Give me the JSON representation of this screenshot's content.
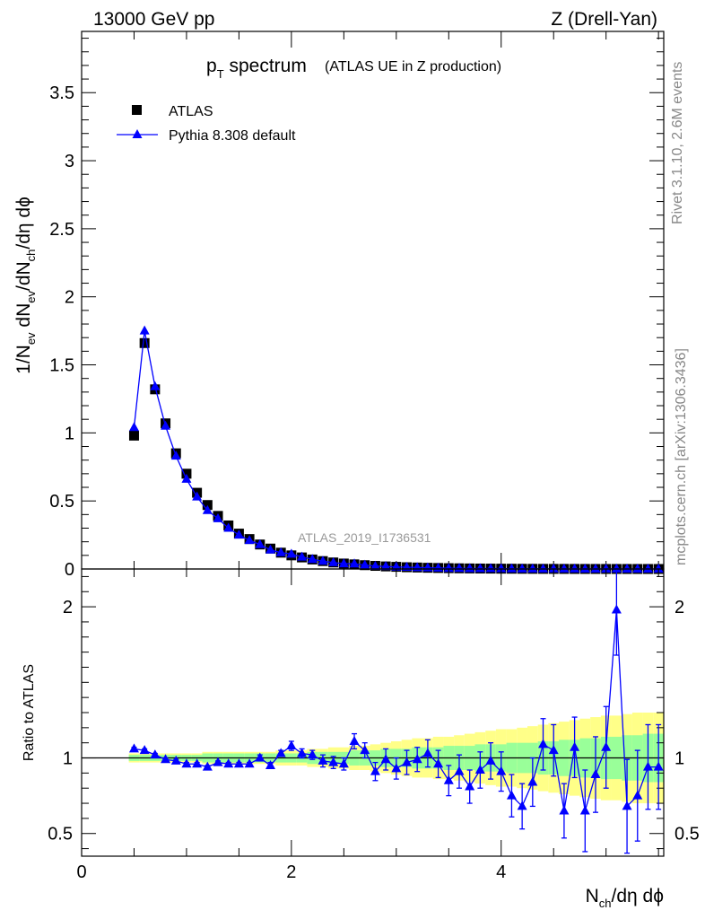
{
  "header": {
    "energy": "13000 GeV pp",
    "process": "Z (Drell-Yan)"
  },
  "title": {
    "main": "p",
    "main_sub": "T",
    "main_rest": " spectrum",
    "annotation": "(ATLAS UE in Z production)"
  },
  "side_labels": {
    "rivet": "Rivet 3.1.10,  2.6M events",
    "mcplots": "mcplots.cern.ch [arXiv:1306.3436]"
  },
  "watermark": "ATLAS_2019_I1736531",
  "legend": [
    {
      "name": "ATLAS",
      "marker": "square",
      "color": "#000000"
    },
    {
      "name": "Pythia 8.308 default",
      "marker": "triangle",
      "color": "#0000ff"
    }
  ],
  "axes": {
    "ylabel_top": {
      "p1": "1/N",
      "s1": "ev",
      "p2": " dN",
      "s2": "ev",
      "p3": "/dN",
      "s3": "ch",
      "p4": "/dη dϕ"
    },
    "ylabel_bottom": "Ratio to ATLAS",
    "xlabel": {
      "p1": "N",
      "s1": "ch",
      "p2": "/dη dϕ"
    }
  },
  "colors": {
    "data": "#000000",
    "mc": "#0000ff",
    "band_inner": "#99ff99",
    "band_outer": "#ffff88"
  },
  "chart_data": [
    {
      "type": "scatter",
      "panel": "main",
      "xlim": [
        0,
        5.55
      ],
      "ylim": [
        0,
        3.95
      ],
      "xticks": [
        0,
        2,
        4
      ],
      "yticks": [
        0,
        0.5,
        1,
        1.5,
        2,
        2.5,
        3,
        3.5
      ],
      "ytick_labels": [
        "0",
        "0.5",
        "1",
        "1.5",
        "2",
        "2.5",
        "3",
        "3.5"
      ],
      "x": [
        0.5,
        0.6,
        0.7,
        0.8,
        0.9,
        1.0,
        1.1,
        1.2,
        1.3,
        1.4,
        1.5,
        1.6,
        1.7,
        1.8,
        1.9,
        2.0,
        2.1,
        2.2,
        2.3,
        2.4,
        2.5,
        2.6,
        2.7,
        2.8,
        2.9,
        3.0,
        3.1,
        3.2,
        3.3,
        3.4,
        3.5,
        3.6,
        3.7,
        3.8,
        3.9,
        4.0,
        4.1,
        4.2,
        4.3,
        4.4,
        4.5,
        4.6,
        4.7,
        4.8,
        4.9,
        5.0,
        5.1,
        5.2,
        5.3,
        5.4,
        5.5
      ],
      "series": [
        {
          "name": "ATLAS",
          "values": [
            0.98,
            1.66,
            1.32,
            1.07,
            0.85,
            0.7,
            0.56,
            0.47,
            0.39,
            0.32,
            0.26,
            0.22,
            0.18,
            0.15,
            0.12,
            0.1,
            0.085,
            0.07,
            0.058,
            0.048,
            0.04,
            0.034,
            0.028,
            0.023,
            0.019,
            0.016,
            0.013,
            0.011,
            0.009,
            0.0075,
            0.0062,
            0.0051,
            0.0042,
            0.0035,
            0.0029,
            0.0024,
            0.002,
            0.0016,
            0.0013,
            0.0011,
            0.0009,
            0.00075,
            0.00062,
            0.00051,
            0.00042,
            0.00035,
            0.00029,
            0.00024,
            0.0002,
            0.00016,
            0.00013
          ]
        },
        {
          "name": "Pythia 8.308 default",
          "values": [
            1.04,
            1.75,
            1.34,
            1.05,
            0.83,
            0.66,
            0.53,
            0.43,
            0.37,
            0.3,
            0.25,
            0.21,
            0.18,
            0.14,
            0.12,
            0.11,
            0.088,
            0.071,
            0.058,
            0.047,
            0.039,
            0.038,
            0.029,
            0.021,
            0.019,
            0.015,
            0.013,
            0.011,
            0.0093,
            0.0072,
            0.0052,
            0.0047,
            0.0034,
            0.0032,
            0.0029,
            0.0022,
            0.0015,
            0.0011,
            0.0011,
            0.0012,
            0.00092,
            0.00049,
            0.00054,
            0.00033,
            0.00037,
            0.00038,
            0.00058,
            0.00017,
            0.00015,
            0.00015,
            0.0001
          ]
        }
      ]
    },
    {
      "type": "scatter",
      "panel": "ratio",
      "xlim": [
        0,
        5.55
      ],
      "ylim": [
        0.35,
        2.25
      ],
      "xticks": [
        0,
        2,
        4
      ],
      "xtick_labels": [
        "0",
        "2",
        "4"
      ],
      "yticks": [
        0.5,
        1,
        2
      ],
      "ytick_labels": [
        "0.5",
        "1",
        "2"
      ],
      "reference_line": 1,
      "x": [
        0.5,
        0.6,
        0.7,
        0.8,
        0.9,
        1.0,
        1.1,
        1.2,
        1.3,
        1.4,
        1.5,
        1.6,
        1.7,
        1.8,
        1.9,
        2.0,
        2.1,
        2.2,
        2.3,
        2.4,
        2.5,
        2.6,
        2.7,
        2.8,
        2.9,
        3.0,
        3.1,
        3.2,
        3.3,
        3.4,
        3.5,
        3.6,
        3.7,
        3.8,
        3.9,
        4.0,
        4.1,
        4.2,
        4.3,
        4.4,
        4.5,
        4.6,
        4.7,
        4.8,
        4.9,
        5.0,
        5.1,
        5.2,
        5.3,
        5.4,
        5.5
      ],
      "band_inner": [
        0.02,
        0.02,
        0.02,
        0.02,
        0.02,
        0.02,
        0.02,
        0.03,
        0.03,
        0.03,
        0.03,
        0.03,
        0.03,
        0.03,
        0.03,
        0.03,
        0.03,
        0.04,
        0.04,
        0.04,
        0.04,
        0.05,
        0.05,
        0.05,
        0.06,
        0.06,
        0.06,
        0.07,
        0.07,
        0.07,
        0.08,
        0.08,
        0.08,
        0.09,
        0.09,
        0.09,
        0.1,
        0.1,
        0.1,
        0.11,
        0.11,
        0.12,
        0.12,
        0.13,
        0.13,
        0.14,
        0.14,
        0.15,
        0.15,
        0.16,
        0.16
      ],
      "band_outer": [
        0.03,
        0.03,
        0.03,
        0.03,
        0.03,
        0.03,
        0.03,
        0.04,
        0.04,
        0.04,
        0.04,
        0.04,
        0.04,
        0.04,
        0.05,
        0.05,
        0.05,
        0.06,
        0.06,
        0.07,
        0.07,
        0.08,
        0.08,
        0.09,
        0.1,
        0.11,
        0.12,
        0.13,
        0.13,
        0.14,
        0.14,
        0.15,
        0.16,
        0.17,
        0.18,
        0.19,
        0.19,
        0.2,
        0.21,
        0.22,
        0.23,
        0.24,
        0.25,
        0.26,
        0.27,
        0.28,
        0.28,
        0.29,
        0.3,
        0.3,
        0.3
      ],
      "series": [
        {
          "name": "Pythia 8.308 default",
          "values": [
            1.06,
            1.05,
            1.02,
            0.99,
            0.98,
            0.96,
            0.96,
            0.94,
            0.97,
            0.96,
            0.96,
            0.96,
            1.0,
            0.95,
            1.03,
            1.08,
            1.03,
            1.02,
            0.98,
            0.97,
            0.96,
            1.11,
            1.05,
            0.91,
            0.99,
            0.93,
            0.97,
            0.99,
            1.03,
            0.96,
            0.85,
            0.91,
            0.81,
            0.92,
            0.98,
            0.91,
            0.75,
            0.68,
            0.84,
            1.09,
            1.05,
            0.65,
            1.07,
            0.65,
            0.89,
            1.07,
            1.98,
            0.68,
            0.75,
            0.94,
            0.94
          ],
          "err": [
            0.01,
            0.01,
            0.01,
            0.01,
            0.01,
            0.01,
            0.01,
            0.01,
            0.01,
            0.01,
            0.01,
            0.01,
            0.02,
            0.02,
            0.02,
            0.03,
            0.03,
            0.03,
            0.04,
            0.04,
            0.04,
            0.05,
            0.05,
            0.06,
            0.07,
            0.07,
            0.08,
            0.08,
            0.09,
            0.09,
            0.1,
            0.11,
            0.11,
            0.12,
            0.12,
            0.13,
            0.14,
            0.15,
            0.16,
            0.17,
            0.17,
            0.18,
            0.2,
            0.27,
            0.25,
            0.27,
            0.3,
            0.31,
            0.3,
            0.28,
            0.28
          ]
        }
      ]
    }
  ]
}
